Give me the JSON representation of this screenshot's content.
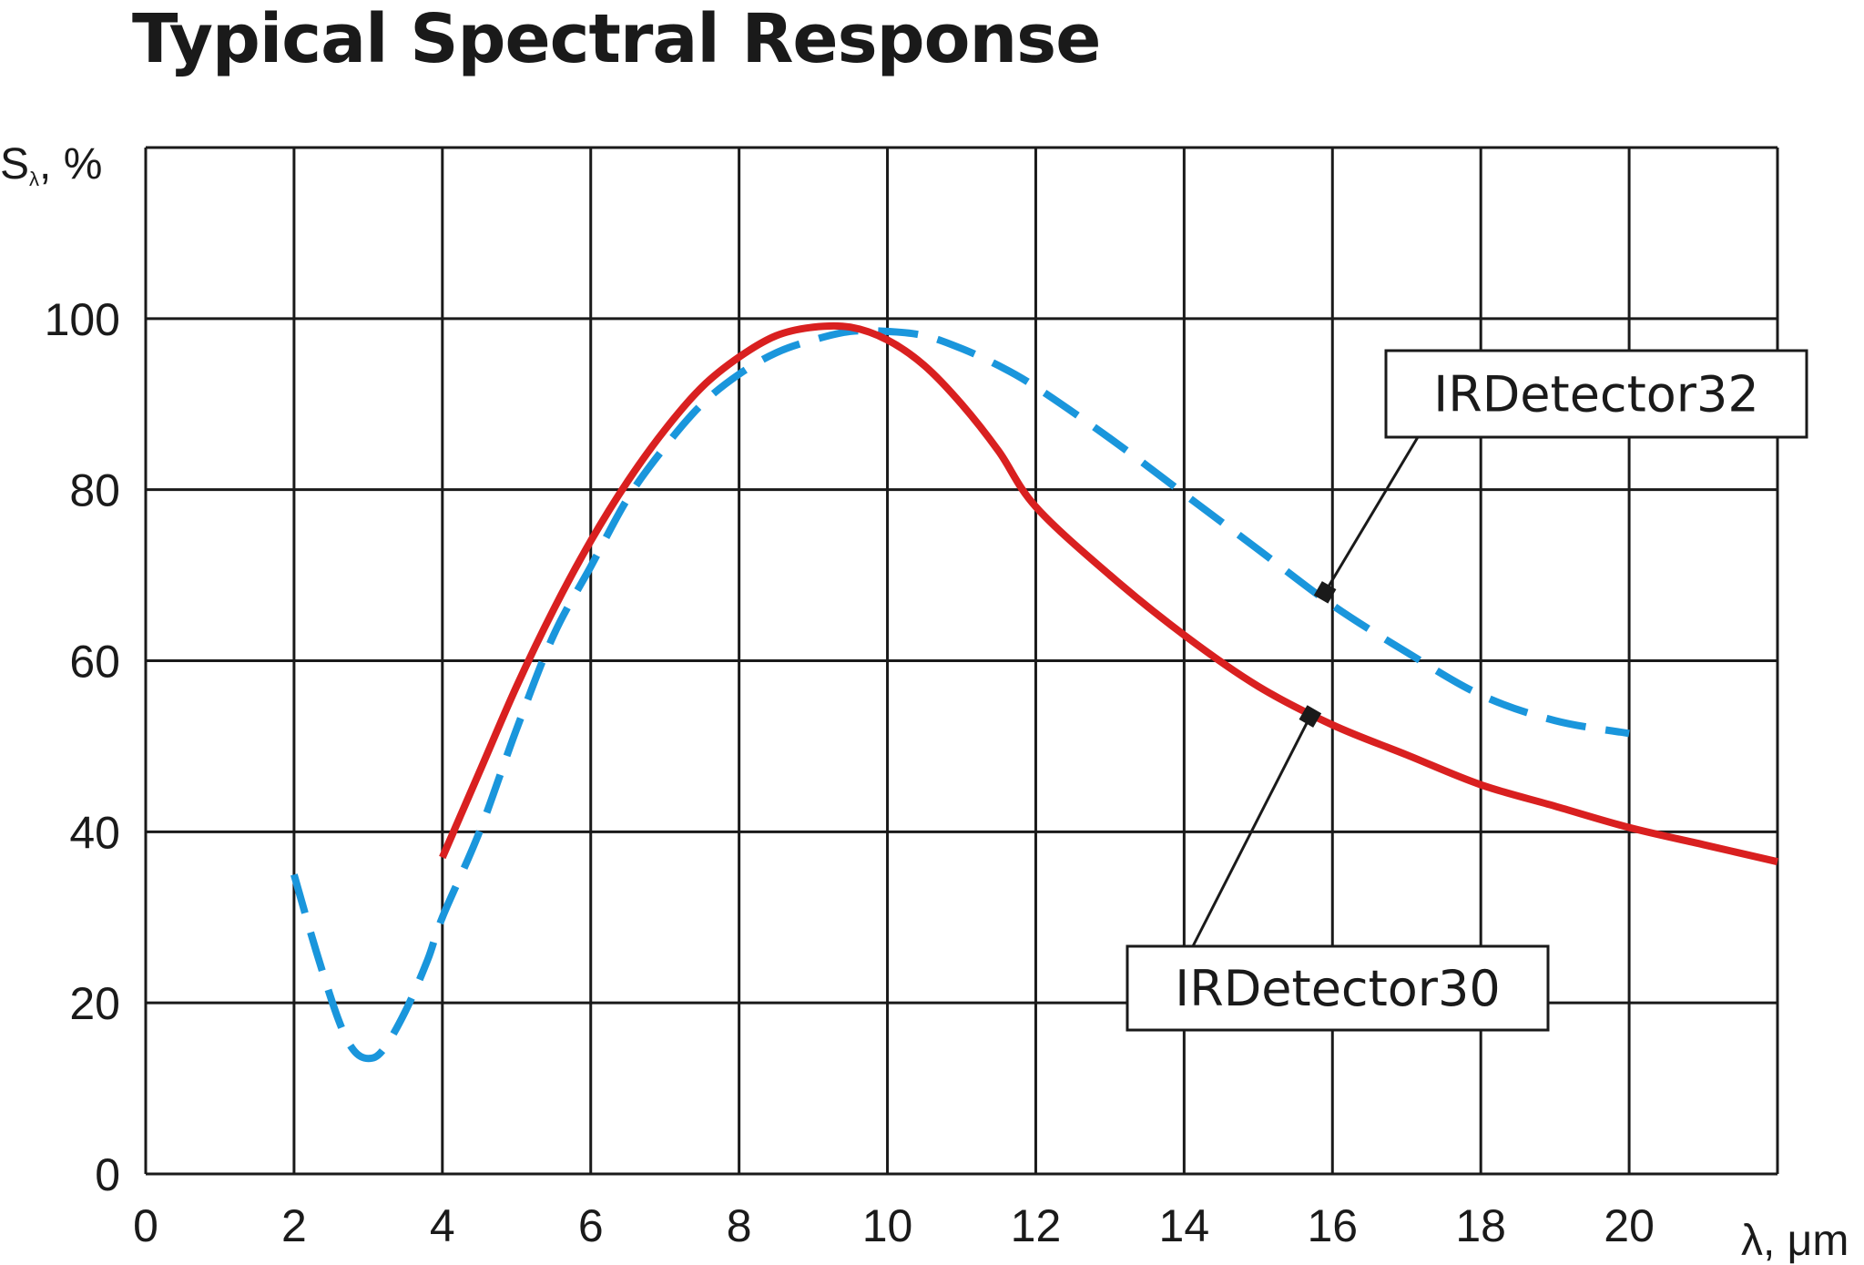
{
  "chart_data": {
    "type": "line",
    "title": "Typical Spectral Response",
    "xlabel": "λ, μm",
    "ylabel": "Sλ, %",
    "ylabel_main": "S",
    "ylabel_sub": "λ",
    "ylabel_rest": ", %",
    "xlim": [
      0,
      22
    ],
    "ylim": [
      0,
      120
    ],
    "x_ticks": [
      0,
      2,
      4,
      6,
      8,
      10,
      12,
      14,
      16,
      18,
      20
    ],
    "y_ticks": [
      0,
      20,
      40,
      60,
      80,
      100
    ],
    "grid": true,
    "series": [
      {
        "name": "IRDetector30",
        "color": "#d92020",
        "style": "solid",
        "x": [
          4.0,
          4.5,
          5.0,
          5.5,
          6.0,
          6.5,
          7.0,
          7.5,
          8.0,
          8.5,
          9.0,
          9.5,
          10.0,
          10.5,
          11.0,
          11.5,
          12.0,
          13.0,
          14.0,
          15.0,
          16.0,
          17.0,
          18.0,
          19.0,
          20.0,
          21.0,
          22.0
        ],
        "y": [
          37,
          47,
          57,
          66,
          74,
          81,
          87,
          92,
          95.5,
          98,
          99,
          99,
          97.5,
          94.5,
          90,
          84.5,
          78,
          70,
          63,
          57,
          52.5,
          49,
          45.5,
          43,
          40.5,
          38.5,
          36.5
        ]
      },
      {
        "name": "IRDetector32",
        "color": "#1a96dc",
        "style": "dashed",
        "x": [
          2.0,
          2.3,
          2.6,
          2.8,
          3.0,
          3.2,
          3.5,
          3.8,
          4.0,
          4.5,
          5.0,
          5.5,
          6.0,
          6.5,
          7.0,
          7.5,
          8.0,
          8.5,
          9.0,
          9.5,
          10.0,
          10.5,
          11.0,
          11.5,
          12.0,
          13.0,
          14.0,
          15.0,
          16.0,
          17.0,
          18.0,
          19.0,
          20.0
        ],
        "y": [
          35,
          26,
          18,
          14.5,
          13.5,
          14.5,
          19,
          25,
          30,
          40,
          52,
          63,
          71,
          79,
          85,
          90,
          93.5,
          96,
          97.5,
          98.5,
          98.5,
          98,
          96.5,
          94.5,
          92,
          86,
          79.5,
          73,
          66.5,
          61,
          56,
          53,
          51.5
        ]
      }
    ],
    "annotations": [
      {
        "text": "IRDetector32",
        "series": "IRDetector32",
        "point_x": 15.9,
        "point_y": 68
      },
      {
        "text": "IRDetector30",
        "series": "IRDetector30",
        "point_x": 15.7,
        "point_y": 53.5
      }
    ]
  }
}
